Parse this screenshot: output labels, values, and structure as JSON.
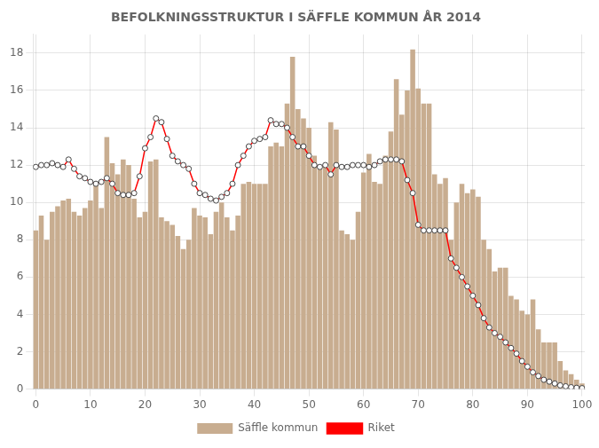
{
  "chart_data": {
    "type": "bar",
    "title": "BEFOLKNINGSSTRUKTUR I SÄFFLE KOMMUN ÅR 2014",
    "x": [
      0,
      1,
      2,
      3,
      4,
      5,
      6,
      7,
      8,
      9,
      10,
      11,
      12,
      13,
      14,
      15,
      16,
      17,
      18,
      19,
      20,
      21,
      22,
      23,
      24,
      25,
      26,
      27,
      28,
      29,
      30,
      31,
      32,
      33,
      34,
      35,
      36,
      37,
      38,
      39,
      40,
      41,
      42,
      43,
      44,
      45,
      46,
      47,
      48,
      49,
      50,
      51,
      52,
      53,
      54,
      55,
      56,
      57,
      58,
      59,
      60,
      61,
      62,
      63,
      64,
      65,
      66,
      67,
      68,
      69,
      70,
      71,
      72,
      73,
      74,
      75,
      76,
      77,
      78,
      79,
      80,
      81,
      82,
      83,
      84,
      85,
      86,
      87,
      88,
      89,
      90,
      91,
      92,
      93,
      94,
      95,
      96,
      97,
      98,
      99,
      100
    ],
    "series": [
      {
        "name": "Säffle kommun",
        "type": "bar",
        "color": "#C8AD90",
        "values": [
          8.5,
          9.3,
          8.0,
          9.5,
          9.8,
          10.1,
          10.2,
          9.5,
          9.3,
          9.7,
          10.1,
          11.0,
          9.7,
          13.5,
          12.1,
          11.5,
          12.3,
          12.0,
          10.2,
          9.2,
          9.5,
          12.2,
          12.3,
          9.2,
          9.0,
          8.8,
          8.2,
          7.5,
          8.0,
          9.7,
          9.3,
          9.2,
          8.3,
          9.5,
          10.0,
          9.2,
          8.5,
          9.3,
          11.0,
          11.1,
          11.0,
          11.0,
          11.0,
          13.0,
          13.2,
          13.0,
          15.3,
          17.8,
          15.0,
          14.5,
          14.0,
          12.5,
          12.0,
          11.9,
          14.3,
          13.9,
          8.5,
          8.3,
          8.0,
          9.5,
          11.6,
          12.6,
          11.1,
          11.0,
          12.5,
          13.8,
          16.6,
          14.7,
          16.0,
          18.2,
          16.1,
          15.3,
          15.3,
          11.5,
          11.0,
          11.3,
          8.0,
          10.0,
          11.0,
          10.5,
          10.7,
          10.3,
          8.0,
          7.5,
          6.3,
          6.5,
          6.5,
          5.0,
          4.8,
          4.2,
          4.0,
          4.8,
          3.2,
          2.5,
          2.5,
          2.5,
          1.5,
          1.0,
          0.8,
          0.5,
          0.3
        ]
      },
      {
        "name": "Riket",
        "type": "line",
        "color": "red",
        "marker": "circle",
        "values": [
          11.9,
          12.0,
          12.0,
          12.1,
          12.0,
          11.9,
          12.3,
          11.8,
          11.4,
          11.3,
          11.1,
          11.0,
          11.1,
          11.3,
          11.0,
          10.5,
          10.4,
          10.4,
          10.5,
          11.4,
          12.9,
          13.5,
          14.5,
          14.3,
          13.4,
          12.5,
          12.2,
          12.0,
          11.8,
          11.0,
          10.5,
          10.4,
          10.2,
          10.1,
          10.3,
          10.5,
          11.0,
          12.0,
          12.5,
          13.0,
          13.3,
          13.4,
          13.5,
          14.4,
          14.2,
          14.2,
          14.0,
          13.5,
          13.0,
          13.0,
          12.5,
          12.0,
          11.9,
          12.0,
          11.5,
          12.0,
          11.9,
          11.9,
          12.0,
          12.0,
          12.0,
          11.9,
          12.0,
          12.2,
          12.3,
          12.3,
          12.3,
          12.2,
          11.2,
          10.5,
          8.8,
          8.5,
          8.5,
          8.5,
          8.5,
          8.5,
          7.0,
          6.5,
          6.0,
          5.5,
          5.0,
          4.5,
          3.8,
          3.3,
          3.0,
          2.8,
          2.5,
          2.2,
          1.9,
          1.5,
          1.2,
          0.9,
          0.7,
          0.5,
          0.4,
          0.3,
          0.2,
          0.15,
          0.1,
          0.07,
          0.05
        ]
      }
    ],
    "xlim": [
      -0.5,
      100.5
    ],
    "xticks": [
      0,
      10,
      20,
      30,
      40,
      50,
      60,
      70,
      80,
      90,
      100
    ],
    "ylim": [
      0,
      19
    ],
    "yticks": [
      0,
      2,
      4,
      6,
      8,
      10,
      12,
      14,
      16,
      18
    ],
    "grid": true,
    "legend": "bottom"
  }
}
